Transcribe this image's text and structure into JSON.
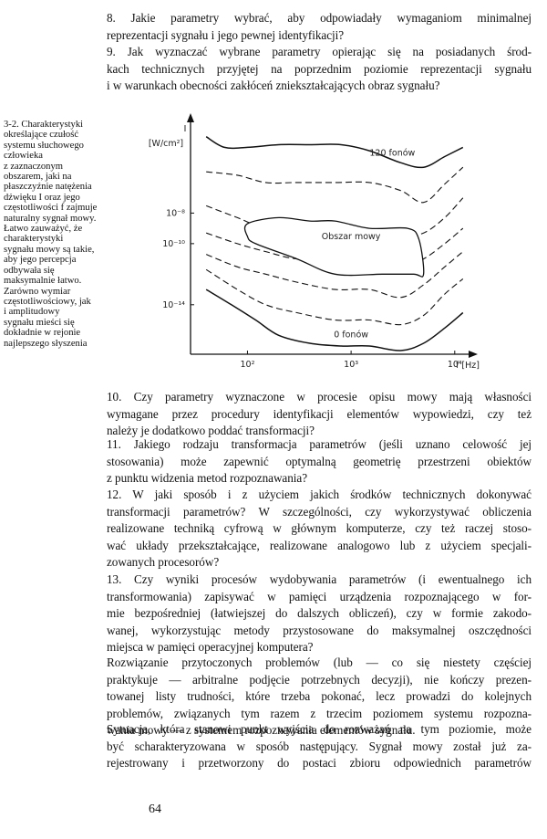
{
  "intro_paragraphs": [
    {
      "id": "q8",
      "lines": [
        "8. Jakie parametry wybrać, aby odpowiadały wymaganiom minimalnej",
        "reprezentacji sygnału i jego pewnej identyfikacji?"
      ]
    },
    {
      "id": "q9",
      "lines": [
        "9. Jak wyznaczać wybrane parametry opierając się na posiadanych środ-",
        "kach technicznych przyjętej na poprzednim poziomie reprezentacji sygnału",
        "i w warunkach obecności zakłóceń zniekształcających obraz sygnału?"
      ]
    }
  ],
  "figure": {
    "caption_lines": [
      "3-2. Charakterystyki",
      "określające czułość",
      "systemu słuchowego",
      "człowieka",
      "z zaznaczonym",
      "obszarem, jaki na",
      "płaszczyźnie natężenia",
      "dźwięku I oraz jego",
      "częstotliwości f zajmuje",
      "naturalny sygnał mowy.",
      "Łatwo zauważyć, że",
      "charakterystyki",
      "sygnału mowy są takie,",
      "aby jego percepcja",
      "odbywała się",
      "maksymalnie łatwo.",
      "Zarówno wymiar",
      "częstotliwościowy, jak",
      "i amplitudowy",
      "sygnału mieści się",
      "dokładnie w rejonie",
      "najlepszego słyszenia"
    ]
  },
  "chart_data": {
    "type": "line",
    "ylabel": "I",
    "y_unit": "[W/cm²]",
    "xlabel": "f [Hz]",
    "x_scale": "log",
    "y_scale": "log",
    "xlim": [
      30,
      16000
    ],
    "ylim": [
      1e-17,
      0.01
    ],
    "x_ticks": [
      {
        "value": 100,
        "label": "10²"
      },
      {
        "value": 1000,
        "label": "10³"
      },
      {
        "value": 10000,
        "label": "10⁴"
      }
    ],
    "y_ticks": [
      {
        "value": 1e-08,
        "label": "10⁻⁸"
      },
      {
        "value": 1e-10,
        "label": "10⁻¹⁰"
      },
      {
        "value": 1e-14,
        "label": "10⁻¹⁴"
      }
    ],
    "series": [
      {
        "name": "120 fonów",
        "style": "solid",
        "points": [
          [
            40,
            0.001
          ],
          [
            60,
            0.0002
          ],
          [
            100,
            0.0002
          ],
          [
            200,
            0.0003
          ],
          [
            400,
            0.0003
          ],
          [
            800,
            0.0003
          ],
          [
            1500,
            0.00012
          ],
          [
            3000,
            2e-05
          ],
          [
            5000,
            1e-05
          ],
          [
            8000,
            5e-05
          ],
          [
            12000,
            0.0002
          ]
        ]
      },
      {
        "name": "",
        "style": "dashed",
        "points": [
          [
            40,
            5e-06
          ],
          [
            80,
            3e-06
          ],
          [
            150,
            1e-06
          ],
          [
            300,
            1e-06
          ],
          [
            700,
            1e-06
          ],
          [
            1500,
            1e-06
          ],
          [
            3000,
            3e-07
          ],
          [
            5000,
            5e-08
          ],
          [
            8000,
            8e-07
          ],
          [
            12000,
            1e-05
          ]
        ]
      },
      {
        "name": "",
        "style": "dashed",
        "points": [
          [
            40,
            3e-08
          ],
          [
            80,
            5e-09
          ],
          [
            150,
            1e-09
          ],
          [
            300,
            1e-09
          ],
          [
            700,
            1e-09
          ],
          [
            1500,
            1e-09
          ],
          [
            3000,
            3e-10
          ],
          [
            5000,
            5e-10
          ],
          [
            8000,
            5e-09
          ],
          [
            12000,
            1e-07
          ]
        ]
      },
      {
        "name": "",
        "style": "dashed",
        "points": [
          [
            40,
            5e-10
          ],
          [
            80,
            1e-10
          ],
          [
            150,
            3e-11
          ],
          [
            300,
            1e-11
          ],
          [
            700,
            1e-11
          ],
          [
            1500,
            1e-11
          ],
          [
            3000,
            3e-12
          ],
          [
            5000,
            1e-11
          ],
          [
            8000,
            1e-10
          ],
          [
            12000,
            1e-09
          ]
        ]
      },
      {
        "name": "",
        "style": "dashed",
        "points": [
          [
            40,
            2e-11
          ],
          [
            80,
            3e-12
          ],
          [
            150,
            1e-12
          ],
          [
            300,
            3e-13
          ],
          [
            700,
            1e-13
          ],
          [
            1500,
            1e-13
          ],
          [
            3000,
            3e-14
          ],
          [
            5000,
            2e-13
          ],
          [
            8000,
            3e-12
          ],
          [
            12000,
            3e-11
          ]
        ]
      },
      {
        "name": "",
        "style": "dashed",
        "points": [
          [
            40,
            2e-12
          ],
          [
            80,
            1e-13
          ],
          [
            150,
            1e-14
          ],
          [
            300,
            3e-15
          ],
          [
            700,
            1e-15
          ],
          [
            1500,
            1e-15
          ],
          [
            3000,
            5e-16
          ],
          [
            5000,
            2e-15
          ],
          [
            8000,
            5e-14
          ],
          [
            12000,
            5e-13
          ]
        ]
      },
      {
        "name": "0 fonów",
        "style": "solid",
        "points": [
          [
            40,
            1e-13
          ],
          [
            70,
            1e-14
          ],
          [
            120,
            1e-15
          ],
          [
            200,
            1e-16
          ],
          [
            400,
            3e-17
          ],
          [
            800,
            2e-17
          ],
          [
            1500,
            2e-17
          ],
          [
            3000,
            1e-17
          ],
          [
            5000,
            3e-17
          ],
          [
            8000,
            3e-16
          ],
          [
            12000,
            3e-15
          ]
        ]
      }
    ],
    "region": {
      "label": "Obszar mowy",
      "outline": [
        [
          100,
          2e-09
        ],
        [
          200,
          5e-09
        ],
        [
          400,
          3e-09
        ],
        [
          700,
          3e-09
        ],
        [
          1500,
          1e-09
        ],
        [
          3500,
          1e-09
        ],
        [
          4500,
          2e-10
        ],
        [
          5000,
          1e-12
        ],
        [
          4000,
          1e-12
        ],
        [
          2000,
          1e-12
        ],
        [
          700,
          1e-12
        ],
        [
          300,
          1e-11
        ],
        [
          120,
          1e-10
        ],
        [
          100,
          3e-10
        ]
      ]
    },
    "grid": false,
    "legend": "none"
  },
  "body_paragraphs": [
    {
      "id": "q10",
      "lines": [
        "10. Czy parametry wyznaczone w procesie opisu mowy mają własności",
        "wymagane przez procedury identyfikacji elementów wypowiedzi, czy też",
        "należy je dodatkowo poddać transformacji?"
      ]
    },
    {
      "id": "q11",
      "lines": [
        "11. Jakiego rodzaju transformacja parametrów (jeśli uznano celowość jej",
        "stosowania) może zapewnić optymalną geometrię przestrzeni obiektów",
        "z punktu widzenia metod rozpoznawania?"
      ]
    },
    {
      "id": "q12",
      "lines": [
        "12. W jaki sposób i z użyciem jakich środków technicznych dokonywać",
        "transformacji parametrów? W szczególności, czy wykorzystywać obliczenia",
        "realizowane techniką cyfrową w głównym komputerze, czy też raczej stoso-",
        "wać układy przekształcające, realizowane analogowo lub z użyciem specjali-",
        "zowanych procesorów?"
      ]
    },
    {
      "id": "q13",
      "lines": [
        "13. Czy wyniki procesów wydobywania parametrów (i ewentualnego ich",
        "transformowania) zapisywać w pamięci urządzenia rozpoznającego w for-",
        "mie bezpośredniej (łatwiejszej do dalszych obliczeń), czy w formie zakodo-",
        "wanej, wykorzystując metody przystosowane do maksymalnej oszczędności",
        "miejsca w pamięci operacyjnej komputera?"
      ]
    },
    {
      "id": "p-rozwiazanie",
      "lines": [
        "Rozwiązanie przytoczonych problemów (lub — co się niestety częściej",
        "praktykuje — arbitralne podjęcie potrzebnych decyzji), nie kończy prezen-",
        "towanej listy trudności, które trzeba pokonać, lecz prowadzi do kolejnych",
        "problemów, związanych tym razem z trzecim poziomem systemu rozpozna-",
        "wania mowy — z systemem rozpoznawania elementów sygnału."
      ]
    },
    {
      "id": "p-sytuacja",
      "lines": [
        "Sytuacja, która stanowi punkt wyjścia do rozważań na tym poziomie, może",
        "być scharakteryzowana w sposób następujący. Sygnał mowy został już za-",
        "rejestrowany i przetworzony do postaci zbioru odpowiednich parametrów"
      ],
      "continues": true
    }
  ],
  "page_number": "64"
}
